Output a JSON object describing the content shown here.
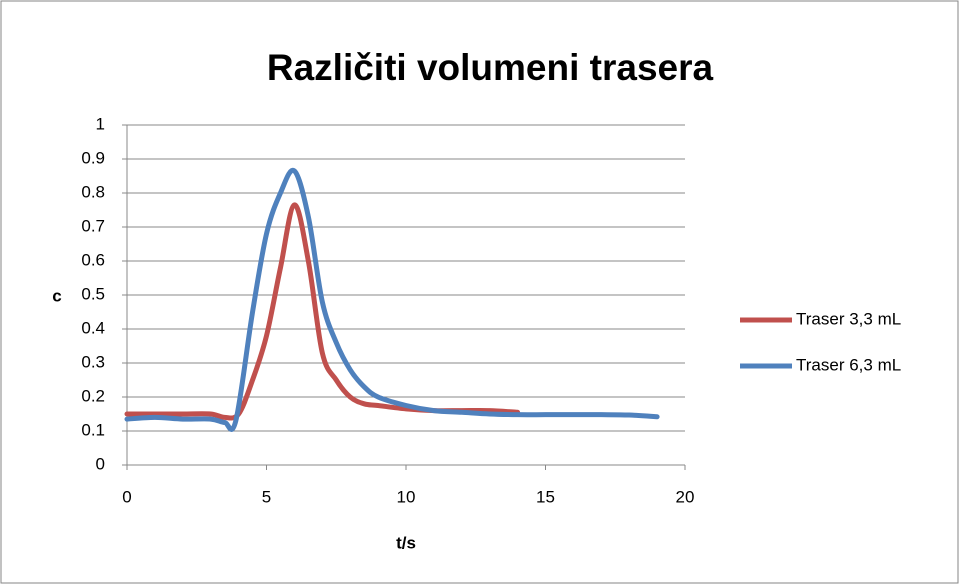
{
  "chart_data": {
    "type": "line",
    "title": "Različiti volumeni trasera",
    "xlabel": "t/s",
    "ylabel": "c",
    "xlim": [
      0,
      20
    ],
    "xticks": [
      0,
      5,
      10,
      15,
      20
    ],
    "ylim": [
      0,
      1
    ],
    "yticks": [
      0,
      0.1,
      0.2,
      0.3,
      0.4,
      0.5,
      0.6,
      0.7,
      0.8,
      0.9,
      1
    ],
    "grid": true,
    "legend": "right",
    "series": [
      {
        "name": "Traser 3,3 mL",
        "color": "#c0504d",
        "x": [
          0,
          1,
          2,
          3,
          3.5,
          4,
          4.5,
          5,
          5.5,
          6,
          6.5,
          7,
          7.5,
          8,
          8.5,
          9,
          10,
          11,
          12,
          13,
          14
        ],
        "values": [
          0.15,
          0.15,
          0.15,
          0.15,
          0.14,
          0.15,
          0.25,
          0.38,
          0.58,
          0.765,
          0.6,
          0.33,
          0.25,
          0.2,
          0.18,
          0.175,
          0.165,
          0.16,
          0.16,
          0.16,
          0.155
        ]
      },
      {
        "name": "Traser 6,3 mL",
        "color": "#4f81bd",
        "x": [
          0,
          1,
          2,
          3,
          3.5,
          3.9,
          4.5,
          5,
          5.5,
          6,
          6.5,
          7,
          7.5,
          8,
          8.5,
          9,
          10,
          11,
          12,
          13,
          14,
          15,
          16,
          17,
          18,
          19
        ],
        "values": [
          0.135,
          0.14,
          0.135,
          0.135,
          0.125,
          0.13,
          0.45,
          0.68,
          0.8,
          0.865,
          0.73,
          0.48,
          0.36,
          0.28,
          0.23,
          0.2,
          0.175,
          0.16,
          0.155,
          0.15,
          0.148,
          0.148,
          0.148,
          0.148,
          0.147,
          0.142
        ]
      }
    ]
  }
}
